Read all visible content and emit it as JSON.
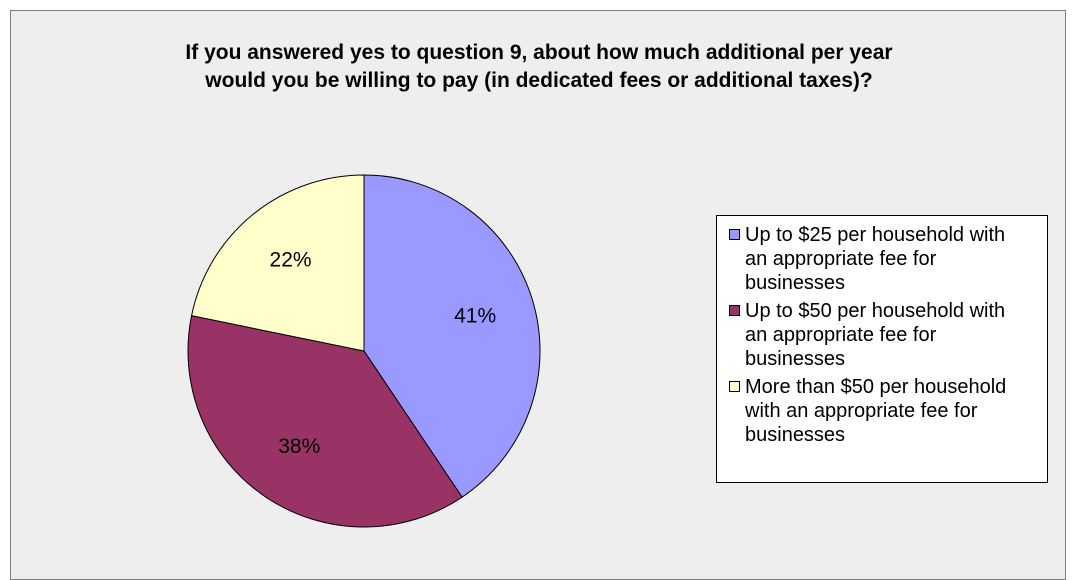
{
  "chart_data": {
    "type": "pie",
    "title_lines": [
      "If you answered yes to question 9, about how much additional per year",
      "would you be willing to pay (in dedicated fees or additional taxes)?"
    ],
    "slices": [
      {
        "label": "Up to $25 per household with an appropriate fee for businesses",
        "value": 41,
        "display": "41%",
        "color": "#9999ff"
      },
      {
        "label": "Up to $50 per household with an appropriate fee for businesses",
        "value": 38,
        "display": "38%",
        "color": "#993366"
      },
      {
        "label": "More than $50 per household with an appropriate fee for businesses",
        "value": 22,
        "display": "22%",
        "color": "#ffffcc"
      }
    ],
    "start_angle": "12 o'clock",
    "direction": "clockwise",
    "legend_position": "right"
  },
  "legend": {
    "items": [
      {
        "lines": [
          "Up to $25 per household with",
          "an appropriate fee for",
          "businesses"
        ]
      },
      {
        "lines": [
          "Up to $50 per household with",
          "an appropriate fee for",
          "businesses"
        ]
      },
      {
        "lines": [
          "More than $50 per household",
          "with an appropriate fee for",
          "businesses"
        ]
      }
    ]
  }
}
